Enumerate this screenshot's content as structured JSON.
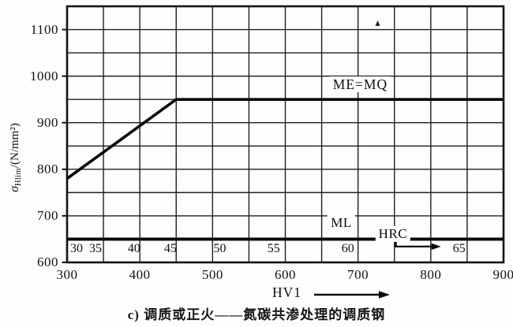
{
  "figure": {
    "caption": "c) 调质或正火——氮碳共渗处理的调质钢",
    "ylabel_sigma": "σ",
    "ylabel_sub": "Hlim",
    "ylabel_unit": "/(N/mm²)"
  },
  "colors": {
    "background": "#fdfdfb",
    "grid": "#1f1f1f",
    "frame": "#141414",
    "curve": "#0a0a0a",
    "text": "#121212"
  },
  "chart_data": {
    "type": "line",
    "title": "c) 调质或正火——氮碳共渗处理的调质钢",
    "xlabel": "HV1",
    "ylabel": "σHlim/(N/mm²)",
    "xlim": [
      300,
      900
    ],
    "ylim": [
      600,
      1150
    ],
    "x_ticks": [
      300,
      400,
      500,
      600,
      700,
      800,
      900
    ],
    "y_ticks": [
      600,
      700,
      800,
      900,
      1000,
      1100
    ],
    "grid": "on",
    "grid_step_x": 50,
    "grid_step_y": 50,
    "legend_position": "none",
    "series": [
      {
        "name": "ME=MQ",
        "points": [
          [
            300,
            780
          ],
          [
            450,
            950
          ],
          [
            900,
            950
          ]
        ],
        "label_at": [
          703,
          983
        ]
      },
      {
        "name": "ML",
        "points": [
          [
            300,
            650
          ],
          [
            900,
            650
          ]
        ],
        "label_at": [
          677,
          684
        ]
      }
    ],
    "hrc_scale": {
      "label": "HRC",
      "label_at": [
        748,
        661
      ],
      "row_sigma": 629,
      "entries": [
        {
          "hrc": "30",
          "hv": 313
        },
        {
          "hrc": "35",
          "hv": 339
        },
        {
          "hrc": "40",
          "hv": 392
        },
        {
          "hrc": "45",
          "hv": 442
        },
        {
          "hrc": "50",
          "hv": 510
        },
        {
          "hrc": "55",
          "hv": 584
        },
        {
          "hrc": "60",
          "hv": 686
        },
        {
          "hrc": "65",
          "hv": 839
        }
      ],
      "arrow": {
        "corner_hv": 752,
        "from_sigma": 648,
        "to_sigma": 634,
        "tip_hv": 814
      }
    },
    "artifact_speck": {
      "hv": 727,
      "sigma": 1113
    }
  }
}
